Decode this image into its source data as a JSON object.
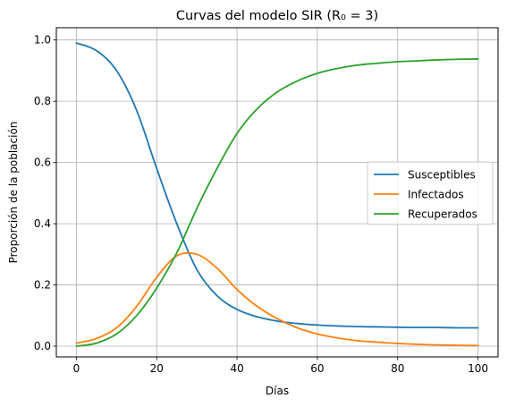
{
  "chart_data": {
    "type": "line",
    "title": "Curvas del modelo SIR (R₀ = 3)",
    "xlabel": "Días",
    "ylabel": "Proporción de la población",
    "xlim": [
      -5,
      105
    ],
    "ylim": [
      -0.035,
      1.04
    ],
    "xticks": [
      0,
      20,
      40,
      60,
      80,
      100
    ],
    "yticks": [
      0.0,
      0.2,
      0.4,
      0.6,
      0.8,
      1.0
    ],
    "xtick_labels": [
      "0",
      "20",
      "40",
      "60",
      "80",
      "100"
    ],
    "ytick_labels": [
      "0.0",
      "0.2",
      "0.4",
      "0.6",
      "0.8",
      "1.0"
    ],
    "grid": true,
    "legend_position": "center-right",
    "x": [
      0,
      5,
      10,
      15,
      20,
      25,
      30,
      35,
      40,
      45,
      50,
      55,
      60,
      65,
      70,
      75,
      80,
      85,
      90,
      95,
      100
    ],
    "series": [
      {
        "name": "Susceptibles",
        "color": "#1f77b4",
        "values": [
          0.99,
          0.965,
          0.9,
          0.77,
          0.58,
          0.4,
          0.25,
          0.165,
          0.12,
          0.096,
          0.082,
          0.074,
          0.069,
          0.066,
          0.064,
          0.063,
          0.062,
          0.061,
          0.061,
          0.06,
          0.06
        ]
      },
      {
        "name": "Infectados",
        "color": "#ff7f0e",
        "values": [
          0.01,
          0.025,
          0.06,
          0.13,
          0.225,
          0.295,
          0.3,
          0.255,
          0.185,
          0.13,
          0.09,
          0.06,
          0.04,
          0.027,
          0.018,
          0.013,
          0.009,
          0.006,
          0.004,
          0.003,
          0.002
        ]
      },
      {
        "name": "Recuperados",
        "color": "#2ca02c",
        "values": [
          0.0,
          0.01,
          0.04,
          0.1,
          0.19,
          0.305,
          0.45,
          0.58,
          0.695,
          0.775,
          0.83,
          0.866,
          0.891,
          0.907,
          0.918,
          0.924,
          0.929,
          0.932,
          0.935,
          0.937,
          0.938
        ]
      }
    ]
  }
}
